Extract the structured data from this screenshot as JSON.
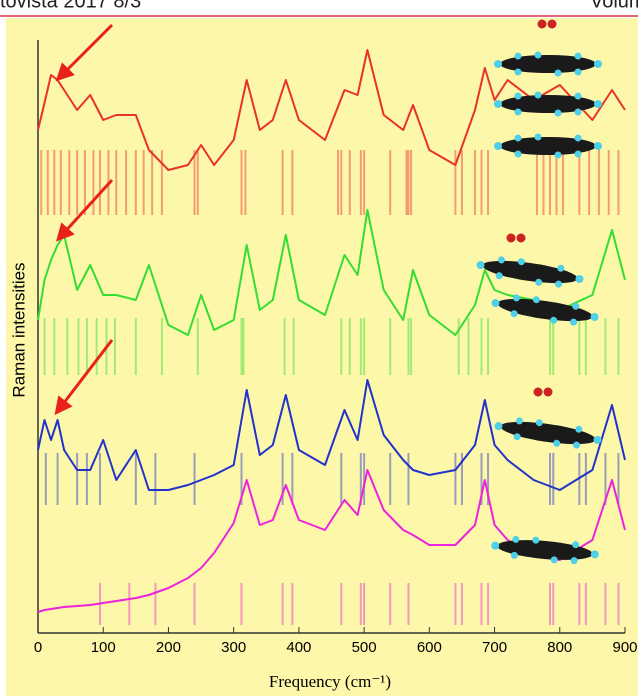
{
  "header_left": "tovista 2017 8/3",
  "header_right": "Volum",
  "chart_data": {
    "type": "line",
    "xlabel": "Frequency (cm⁻¹)",
    "ylabel": "Raman intensities",
    "xlim": [
      0,
      900
    ],
    "xticks": [
      0,
      100,
      200,
      300,
      400,
      500,
      600,
      700,
      800,
      900
    ],
    "ylim": [
      0,
      600
    ],
    "x": [
      0,
      10,
      20,
      30,
      40,
      60,
      80,
      100,
      120,
      150,
      170,
      200,
      230,
      250,
      270,
      300,
      320,
      340,
      360,
      380,
      400,
      440,
      470,
      490,
      505,
      530,
      560,
      575,
      600,
      640,
      670,
      685,
      700,
      720,
      760,
      800,
      850,
      880,
      900
    ],
    "series": [
      {
        "color": "#e8322a",
        "values": [
          503,
          530,
          558,
          553,
          543,
          523,
          538,
          513,
          518,
          518,
          483,
          463,
          468,
          488,
          468,
          493,
          553,
          503,
          513,
          553,
          513,
          493,
          543,
          538,
          583,
          518,
          503,
          528,
          483,
          468,
          523,
          565,
          533,
          553,
          533,
          548,
          513,
          543,
          523
        ],
        "sticks": [
          5,
          15,
          25,
          35,
          48,
          60,
          72,
          85,
          95,
          108,
          120,
          135,
          150,
          162,
          175,
          190,
          240,
          245,
          312,
          318,
          375,
          390,
          460,
          465,
          478,
          495,
          500,
          540,
          565,
          568,
          572,
          640,
          650,
          670,
          680,
          690,
          765,
          775,
          785,
          795,
          805,
          830,
          845,
          860,
          875,
          890
        ]
      },
      {
        "color": "#33dd33",
        "values": [
          313,
          353,
          373,
          388,
          398,
          343,
          368,
          338,
          338,
          333,
          368,
          308,
          298,
          338,
          303,
          313,
          388,
          323,
          333,
          398,
          333,
          318,
          378,
          358,
          423,
          343,
          313,
          363,
          318,
          298,
          328,
          363,
          343,
          338,
          333,
          323,
          338,
          403,
          353
        ],
        "sticks": [
          10,
          25,
          45,
          62,
          75,
          90,
          105,
          118,
          150,
          190,
          245,
          312,
          315,
          378,
          392,
          465,
          478,
          495,
          500,
          540,
          568,
          572,
          645,
          660,
          680,
          690,
          785,
          790,
          830,
          840,
          870,
          890
        ]
      },
      {
        "color": "#2233cc",
        "values": [
          183,
          213,
          193,
          213,
          183,
          163,
          163,
          193,
          153,
          183,
          143,
          143,
          148,
          153,
          158,
          168,
          243,
          178,
          188,
          238,
          183,
          168,
          223,
          193,
          253,
          198,
          173,
          163,
          158,
          163,
          188,
          233,
          188,
          173,
          153,
          143,
          163,
          228,
          173
        ],
        "sticks": [
          12,
          30,
          60,
          75,
          95,
          150,
          180,
          240,
          312,
          375,
          390,
          465,
          495,
          500,
          540,
          568,
          640,
          650,
          680,
          690,
          785,
          790,
          830,
          840,
          870,
          890
        ]
      },
      {
        "color": "#ee22dd",
        "values": [
          21,
          23,
          24,
          25,
          26,
          27,
          28,
          30,
          32,
          35,
          38,
          45,
          55,
          65,
          80,
          110,
          153,
          108,
          113,
          148,
          113,
          103,
          133,
          118,
          163,
          123,
          103,
          98,
          88,
          88,
          108,
          153,
          108,
          93,
          78,
          73,
          93,
          153,
          103
        ],
        "sticks": [
          95,
          140,
          180,
          240,
          312,
          375,
          390,
          465,
          495,
          500,
          540,
          568,
          640,
          650,
          680,
          690,
          785,
          790,
          830,
          840,
          870,
          890
        ]
      }
    ]
  }
}
